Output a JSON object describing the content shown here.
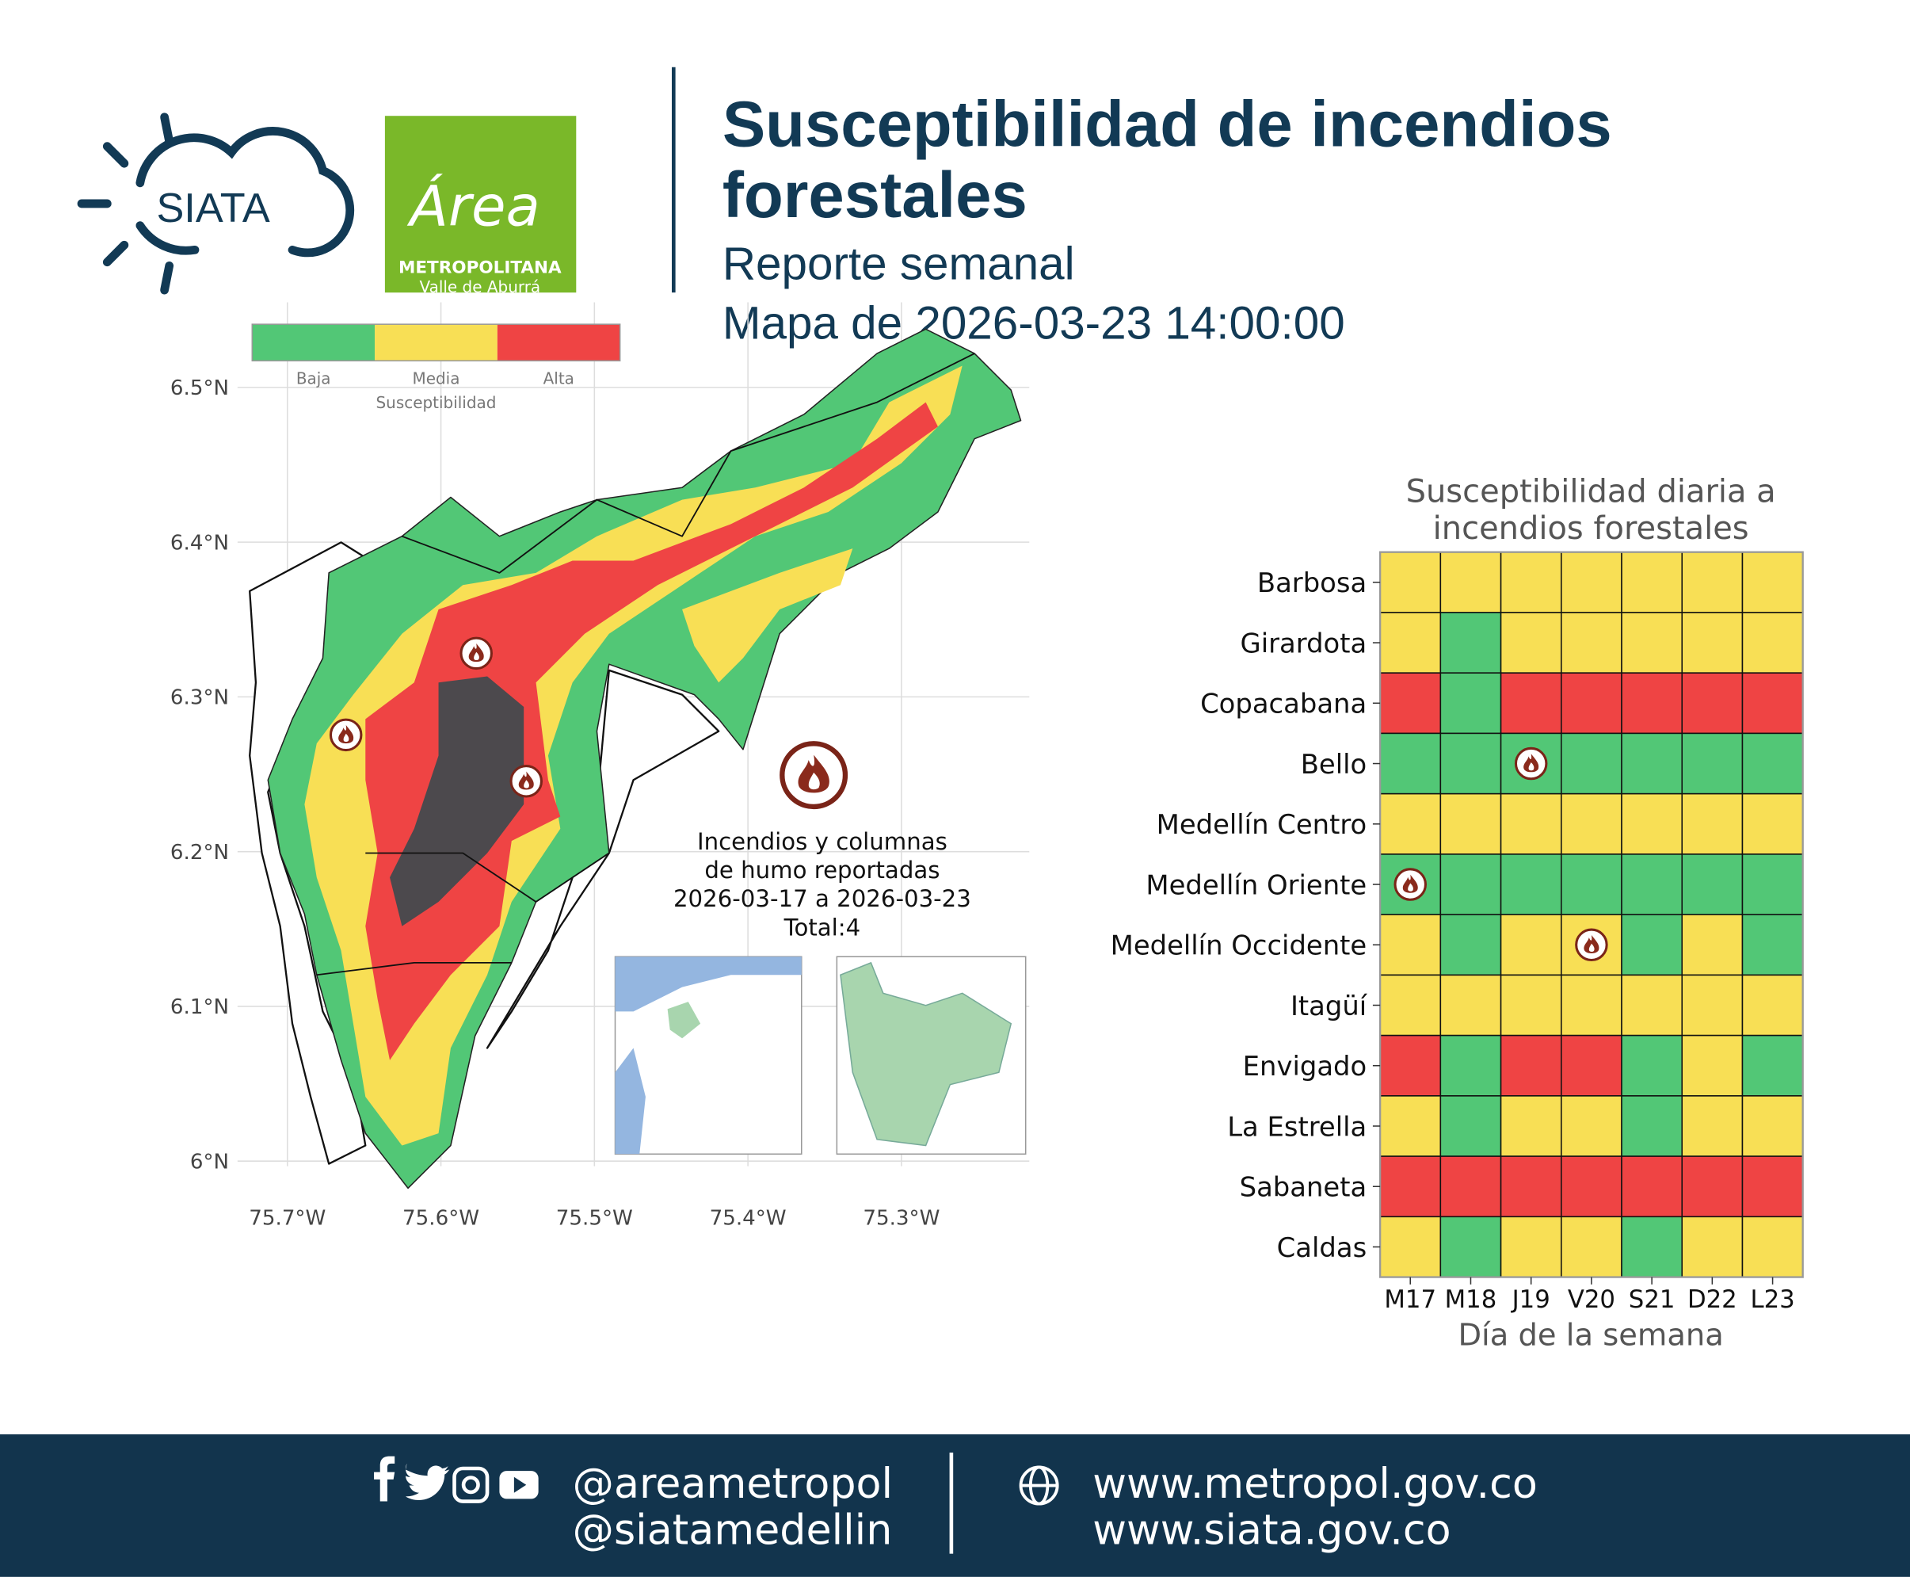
{
  "header": {
    "title": [
      "Susceptibilidad de incendios",
      "forestales"
    ],
    "subtitle": "Reporte semanal",
    "date": "Mapa de 2026-03-23 14:00:00",
    "logo_siata": "SIATA",
    "logo_area": "Área",
    "logo_area_sub": "METROPOLITANA",
    "logo_area_sub2": "Valle de Aburrá"
  },
  "legend": {
    "title": "Susceptibilidad",
    "labels": [
      "Baja",
      "Media",
      "Alta"
    ],
    "colors": [
      "#52c776",
      "#f8df55",
      "#ef4444"
    ]
  },
  "map": {
    "xlim": [
      -75.7325,
      -75.2167
    ],
    "ylim": [
      5.977,
      6.555
    ],
    "xticks": [
      {
        "value": -75.7,
        "label": "75.7°W"
      },
      {
        "value": -75.6,
        "label": "75.6°W"
      },
      {
        "value": -75.5,
        "label": "75.5°W"
      },
      {
        "value": -75.4,
        "label": "75.4°W"
      },
      {
        "value": -75.3,
        "label": "75.3°W"
      }
    ],
    "yticks": [
      {
        "value": 6.0,
        "label": "6°N"
      },
      {
        "value": 6.1,
        "label": "6.1°N"
      },
      {
        "value": 6.2,
        "label": "6.2°N"
      },
      {
        "value": 6.3,
        "label": "6.3°N"
      },
      {
        "value": 6.4,
        "label": "6.4°N"
      },
      {
        "value": 6.5,
        "label": "6.5°N"
      }
    ],
    "annotation": [
      "Incendios y columnas",
      "de humo reportadas",
      "2026-03-17 a 2026-03-23",
      "Total:4"
    ]
  },
  "heatmap": {
    "title": [
      "Susceptibilidad diaria a",
      "incendios forestales"
    ],
    "rows": [
      "Barbosa",
      "Girardota",
      "Copacabana",
      "Bello",
      "Medellín Centro",
      "Medellín Oriente",
      "Medellín Occidente",
      "Itagüí",
      "Envigado",
      "La Estrella",
      "Sabaneta",
      "Caldas"
    ],
    "columns": [
      "M17",
      "M18",
      "J19",
      "V20",
      "S21",
      "D22",
      "L23"
    ],
    "xlabel": "Día de la semana",
    "cells": [
      [
        1,
        1,
        1,
        1,
        1,
        1,
        1
      ],
      [
        1,
        0,
        1,
        1,
        1,
        1,
        1
      ],
      [
        2,
        0,
        2,
        2,
        2,
        2,
        2
      ],
      [
        0,
        0,
        0,
        0,
        0,
        0,
        0
      ],
      [
        1,
        1,
        1,
        1,
        1,
        1,
        1
      ],
      [
        0,
        0,
        0,
        0,
        0,
        0,
        0
      ],
      [
        1,
        0,
        1,
        1,
        0,
        1,
        0
      ],
      [
        1,
        1,
        1,
        1,
        1,
        1,
        1
      ],
      [
        2,
        0,
        2,
        2,
        0,
        1,
        0
      ],
      [
        1,
        0,
        1,
        1,
        0,
        1,
        1
      ],
      [
        2,
        2,
        2,
        2,
        2,
        2,
        2
      ],
      [
        1,
        0,
        1,
        1,
        0,
        1,
        1
      ]
    ],
    "fires": [
      [
        3,
        2
      ],
      [
        5,
        0
      ],
      [
        6,
        3
      ]
    ]
  },
  "footer": {
    "social": [
      "@areametropol",
      "@siatamedellin"
    ],
    "web": [
      "www.metropol.gov.co",
      "www.siata.gov.co"
    ]
  }
}
